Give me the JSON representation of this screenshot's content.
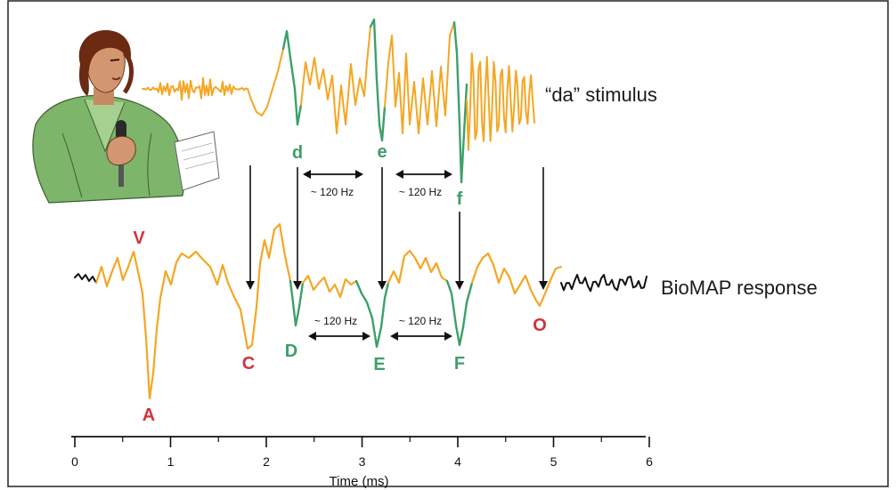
{
  "colors": {
    "orange": "#F5A623",
    "green": "#3DA06A",
    "red": "#D0343A",
    "black": "#111111",
    "jacket": "#7DB56A",
    "skin": "#C88A62",
    "hair": "#6B2A12"
  },
  "labels": {
    "stimulus": "“da” stimulus",
    "response": "BioMAP response",
    "axis_title": "Time (ms)",
    "hz_label": "~ 120 Hz"
  },
  "stimulus_peaks": [
    "d",
    "e",
    "f"
  ],
  "response_peaks": [
    "V",
    "A",
    "C",
    "D",
    "E",
    "F",
    "O"
  ],
  "axis": {
    "ticks": [
      "0",
      "1",
      "2",
      "3",
      "4",
      "5",
      "6"
    ]
  },
  "icons": {
    "speaker": "woman-speaking-into-microphone-icon"
  }
}
